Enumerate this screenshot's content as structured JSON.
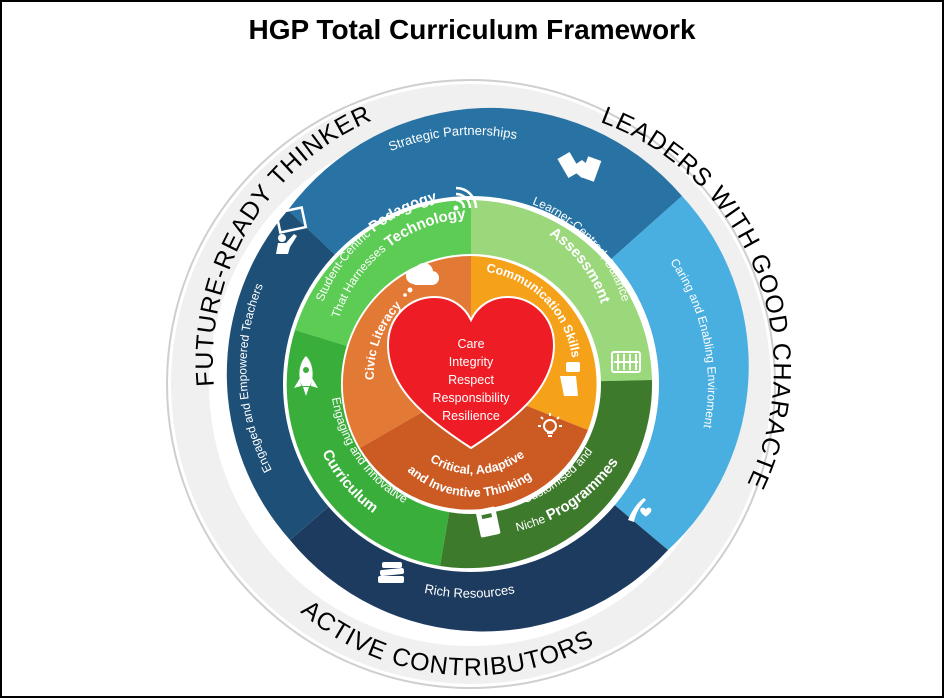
{
  "title": "HGP Total Curriculum Framework",
  "outer_ring": {
    "top_left": "FUTURE-READY THINKERS",
    "top_right": "LEADERS WITH GOOD CHARACTER",
    "bottom": "ACTIVE CONTRIBUTORS"
  },
  "support_ring": {
    "strategic": "Strategic Partnerships",
    "caring": "Caring and Enabling Enviroment",
    "resources": "Rich Resources",
    "teachers": "Engaged and Empowered Teachers"
  },
  "middle_ring": {
    "pedagogy_line1_a": "Student-Centric ",
    "pedagogy_line1_b": "Pedagogy",
    "pedagogy_line2_a": "That Harnesses ",
    "pedagogy_line2_b": "Technology",
    "assessment_line1": "Learner-Centred, Balanced",
    "assessment_line2": "Assessment",
    "programmes_line1": "Customised and",
    "programmes_line2_a": "Niche ",
    "programmes_line2_b": "Programmes",
    "curriculum_line1": "Engaging and Innovative",
    "curriculum_line2": "Curriculum"
  },
  "inner_ring": {
    "civic": "Civic Literacy",
    "communication": "Communication Skills",
    "critical_line1": "Critical, Adaptive",
    "critical_line2": "and Inventive Thinking"
  },
  "heart": {
    "values": [
      "Care",
      "Integrity",
      "Respect",
      "Responsibility",
      "Resilience"
    ]
  },
  "colors": {
    "ring_light_grey": "#e8e8e8",
    "support_dark": "#1e4f77",
    "support_teal": "#2873a4",
    "support_light": "#49aee0",
    "support_navy": "#1d3b5f",
    "pedagogy": "#5ccc55",
    "assessment": "#9bd87c",
    "programmes": "#3e7a2c",
    "curriculum": "#3aae3b",
    "civic": "#e27a35",
    "communication": "#f5a21a",
    "critical": "#cc5a23",
    "heart": "#ee1c24"
  },
  "icons": [
    "handshake-icon",
    "teacher-board-icon",
    "wifi-icon",
    "cloud-thought-icon",
    "abacus-icon",
    "rocket-icon",
    "hand-speech-icon",
    "lightbulb-icon",
    "book-icon",
    "books-stack-icon",
    "hand-heart-icon"
  ]
}
